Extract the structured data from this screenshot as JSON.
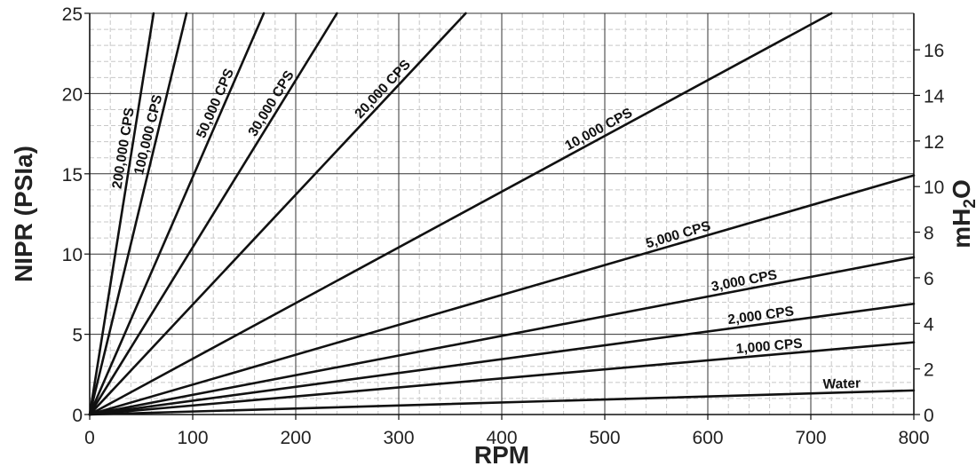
{
  "chart_data": {
    "type": "line",
    "title": "",
    "xlabel": "RPM",
    "ylabel": "NIPR (PSIa)",
    "y2label": "mH",
    "y2label_sub": "2",
    "y2label_suffix": "O",
    "xlim": [
      0,
      800
    ],
    "ylim": [
      0,
      25
    ],
    "y2lim": [
      0,
      17.6
    ],
    "x_ticks": [
      0,
      100,
      200,
      300,
      400,
      500,
      600,
      700,
      800
    ],
    "y_ticks": [
      0,
      5,
      10,
      15,
      20,
      25
    ],
    "y2_ticks": [
      0,
      2,
      4,
      6,
      8,
      10,
      12,
      14,
      16
    ],
    "grid": true,
    "legend": "none",
    "series": [
      {
        "name": "Water",
        "values": [
          [
            0,
            0
          ],
          [
            800,
            1.5
          ]
        ],
        "label_at": 0.94
      },
      {
        "name": "1,000 CPS",
        "values": [
          [
            0,
            0
          ],
          [
            800,
            4.5
          ]
        ],
        "label_at": 0.87
      },
      {
        "name": "2,000 CPS",
        "values": [
          [
            0,
            0
          ],
          [
            800,
            6.9
          ]
        ],
        "label_at": 0.86
      },
      {
        "name": "3,000 CPS",
        "values": [
          [
            0,
            0
          ],
          [
            800,
            9.8
          ]
        ],
        "label_at": 0.84
      },
      {
        "name": "5,000 CPS",
        "values": [
          [
            0,
            0
          ],
          [
            800,
            14.9
          ]
        ],
        "label_at": 0.76
      },
      {
        "name": "10,000 CPS",
        "values": [
          [
            0,
            0
          ],
          [
            720,
            25
          ]
        ],
        "label_at": 0.74
      },
      {
        "name": "20,000 CPS",
        "values": [
          [
            0,
            0
          ],
          [
            365,
            25
          ]
        ],
        "label_at": 0.87
      },
      {
        "name": "30,000 CPS",
        "values": [
          [
            0,
            0
          ],
          [
            240,
            25
          ]
        ],
        "label_at": 0.85
      },
      {
        "name": "50,000 CPS",
        "values": [
          [
            0,
            0
          ],
          [
            169,
            25
          ]
        ],
        "label_at": 0.86
      },
      {
        "name": "100,000 CPS",
        "values": [
          [
            0,
            0
          ],
          [
            94,
            25
          ]
        ],
        "label_at": 0.8
      },
      {
        "name": "200,000 CPS",
        "values": [
          [
            0,
            0
          ],
          [
            62,
            25
          ]
        ],
        "label_at": 0.77
      }
    ]
  }
}
